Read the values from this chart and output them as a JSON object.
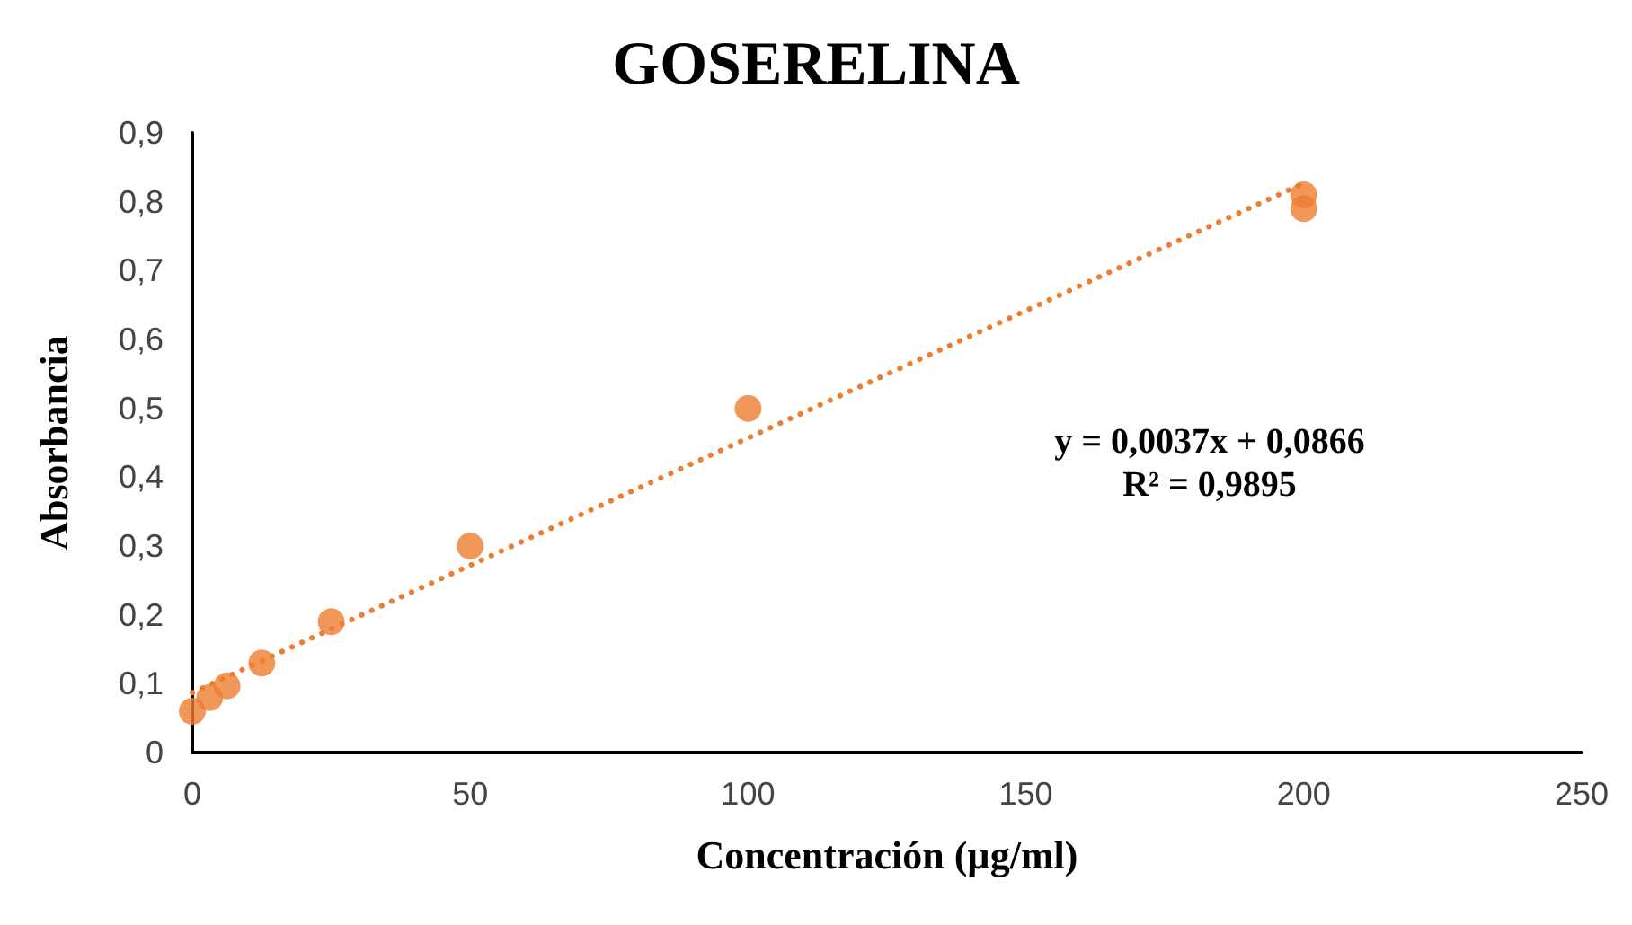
{
  "chart_data": {
    "type": "scatter",
    "title": "GOSERELINA",
    "xlabel": "Concentración (µg/ml)",
    "ylabel": "Absorbancia",
    "xlim": [
      0,
      250
    ],
    "xticks": [
      0,
      50,
      100,
      150,
      200,
      250
    ],
    "ylim": [
      0,
      0.9
    ],
    "yticks": [
      {
        "value": 0,
        "label": "0"
      },
      {
        "value": 0.1,
        "label": "0,1"
      },
      {
        "value": 0.2,
        "label": "0,2"
      },
      {
        "value": 0.3,
        "label": "0,3"
      },
      {
        "value": 0.4,
        "label": "0,4"
      },
      {
        "value": 0.5,
        "label": "0,5"
      },
      {
        "value": 0.6,
        "label": "0,6"
      },
      {
        "value": 0.7,
        "label": "0,7"
      },
      {
        "value": 0.8,
        "label": "0,8"
      },
      {
        "value": 0.9,
        "label": "0,9"
      }
    ],
    "grid": false,
    "marker": "circle",
    "series": [
      {
        "color": "#ed7d31",
        "x": [
          0,
          3.125,
          6.25,
          12.5,
          25,
          50,
          100,
          200,
          200
        ],
        "values": [
          0.06,
          0.08,
          0.097,
          0.13,
          0.19,
          0.3,
          0.5,
          0.81,
          0.79
        ]
      },
      {
        "type": "line",
        "color": "#ed7d31",
        "line_style": "dotted",
        "marker": "none",
        "x": [
          0,
          200
        ],
        "values": [
          0.087,
          0.827
        ]
      }
    ],
    "annotations": [
      "y = 0,0037x + 0,0866",
      "R² = 0,9895"
    ]
  }
}
